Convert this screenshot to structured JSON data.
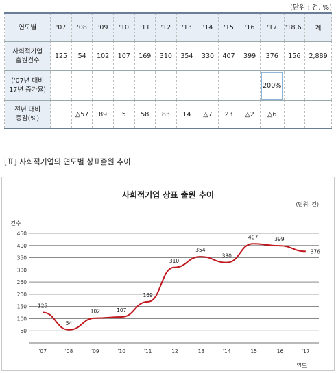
{
  "table": {
    "unit": "(단위 : 건, %)",
    "header": [
      "연도별",
      "'07",
      "'08",
      "'09",
      "'10",
      "'11",
      "'12",
      "'13",
      "'14",
      "'15",
      "'16",
      "'17",
      "'18.6.",
      "계"
    ],
    "rows": [
      {
        "label_lines": [
          "사회적기업",
          "출원건수"
        ],
        "cells": [
          "125",
          "54",
          "102",
          "107",
          "169",
          "310",
          "354",
          "330",
          "407",
          "399",
          "376",
          "156",
          "2,889"
        ]
      },
      {
        "label_lines": [
          "('07년 대비",
          "17년 증가율)"
        ],
        "cells": [
          "",
          "",
          "",
          "",
          "",
          "",
          "",
          "",
          "",
          "",
          "200%",
          "",
          ""
        ]
      },
      {
        "label_lines": [
          "전년 대비",
          "증감(%)"
        ],
        "cells": [
          "",
          "△57",
          "89",
          "5",
          "58",
          "83",
          "14",
          "△7",
          "23",
          "△2",
          "△6",
          "",
          ""
        ]
      }
    ]
  },
  "caption": "[표] 사회적기업의 연도별 상표출원 추이",
  "chart_data": {
    "type": "line",
    "title": "사회적기업 상표 출원 추이",
    "unit": "(단위: 건)",
    "ylabel": "건수",
    "xlabel": "연도",
    "categories": [
      "'07",
      "'08",
      "'09",
      "'10",
      "'11",
      "'12",
      "'13",
      "'14",
      "'15",
      "'16",
      "'17"
    ],
    "values": [
      125,
      54,
      102,
      107,
      169,
      310,
      354,
      330,
      407,
      399,
      376
    ],
    "ylim": [
      0,
      450
    ],
    "yticks": [
      50,
      100,
      150,
      200,
      250,
      300,
      350,
      400,
      450
    ],
    "grid": true,
    "line_color": "#c0181e"
  }
}
